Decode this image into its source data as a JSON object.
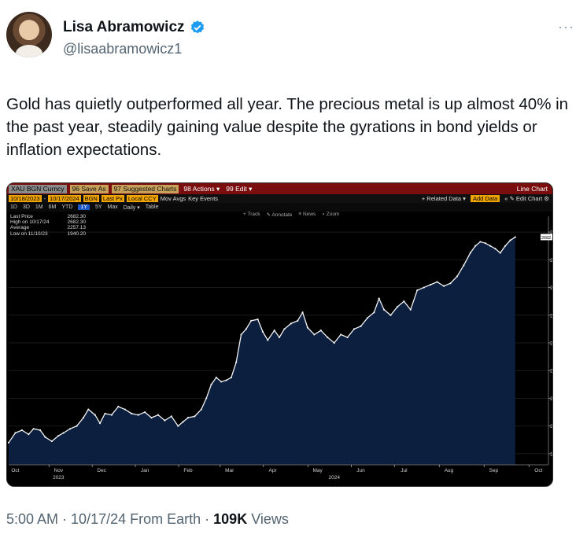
{
  "author": {
    "display_name": "Lisa Abramowicz",
    "handle": "@lisaabramowicz1",
    "verified_icon": "verified-badge-icon",
    "more_icon": "more-dots-icon",
    "more_label": "···"
  },
  "tweet": {
    "text": "Gold has quietly outperformed all year. The precious metal is up almost 40% in the past year, steadily gaining value despite the gyrations in bond yields or inflation expectations."
  },
  "terminal": {
    "ticker": "XAU BGN Curncy",
    "menu_save": "96 Save As",
    "menu_charts": "97 Suggested Charts",
    "menu_actions": "98 Actions ▾",
    "menu_edit": "99 Edit ▾",
    "chart_type": "Line Chart",
    "start_date": "10/18/2023",
    "end_date": "10/17/2024",
    "source": "BGN",
    "price_field": "Last Px",
    "currency": "Local CCY",
    "mov_avgs": "Mov Avgs",
    "key_events": "Key Events",
    "related_data": "+ Related Data ▾",
    "add_data": "Add Data",
    "edit_chart": "« ✎ Edit Chart ⚙",
    "periods": [
      "1D",
      "3D",
      "1M",
      "6M",
      "YTD",
      "1Y",
      "5Y",
      "Max"
    ],
    "selected_period": "1Y",
    "frequency": "Daily ▾",
    "table_label": "Table",
    "tools": [
      "+ Track",
      "✎ Annotate",
      "≡ News",
      "⌕ Zoom"
    ],
    "legend": [
      {
        "label": "Last Price",
        "value": "2682.30"
      },
      {
        "label": "High on 10/17/24",
        "value": "2682.30"
      },
      {
        "label": "Average",
        "value": "2257.13"
      },
      {
        "label": "Low on 11/10/23",
        "value": "1940.20"
      }
    ],
    "last_price_tag": "2682.30"
  },
  "chart_data": {
    "type": "area",
    "xlabel": "",
    "ylabel": "",
    "ylim": [
      1860,
      2740
    ],
    "y_ticks": [
      1900,
      2000,
      2100,
      2200,
      2300,
      2400,
      2500,
      2600,
      2700
    ],
    "month_labels": [
      {
        "label": "Oct",
        "day": 4
      },
      {
        "label": "Nov",
        "day": 30
      },
      {
        "label": "Dec",
        "day": 56
      },
      {
        "label": "Jan",
        "day": 82
      },
      {
        "label": "Feb",
        "day": 108
      },
      {
        "label": "Mar",
        "day": 133
      },
      {
        "label": "Apr",
        "day": 159
      },
      {
        "label": "May",
        "day": 186
      },
      {
        "label": "Jun",
        "day": 212
      },
      {
        "label": "Jul",
        "day": 238
      },
      {
        "label": "Aug",
        "day": 265
      },
      {
        "label": "Sep",
        "day": 292
      },
      {
        "label": "Oct",
        "day": 319
      }
    ],
    "year_labels": [
      {
        "label": "2023",
        "day": 30
      },
      {
        "label": "2024",
        "day": 196
      }
    ],
    "total_days": 325,
    "series": [
      {
        "points": [
          [
            0,
            1940
          ],
          [
            4,
            1975
          ],
          [
            8,
            1985
          ],
          [
            12,
            1970
          ],
          [
            15,
            1990
          ],
          [
            19,
            1985
          ],
          [
            22,
            1960
          ],
          [
            26,
            1945
          ],
          [
            30,
            1965
          ],
          [
            33,
            1975
          ],
          [
            37,
            1990
          ],
          [
            41,
            2000
          ],
          [
            45,
            2030
          ],
          [
            48,
            2060
          ],
          [
            52,
            2040
          ],
          [
            55,
            2010
          ],
          [
            58,
            2045
          ],
          [
            62,
            2040
          ],
          [
            66,
            2070
          ],
          [
            70,
            2060
          ],
          [
            74,
            2045
          ],
          [
            78,
            2040
          ],
          [
            82,
            2050
          ],
          [
            86,
            2030
          ],
          [
            90,
            2040
          ],
          [
            94,
            2020
          ],
          [
            98,
            2035
          ],
          [
            102,
            2000
          ],
          [
            105,
            2015
          ],
          [
            108,
            2030
          ],
          [
            112,
            2035
          ],
          [
            116,
            2060
          ],
          [
            119,
            2100
          ],
          [
            122,
            2150
          ],
          [
            125,
            2175
          ],
          [
            128,
            2160
          ],
          [
            131,
            2165
          ],
          [
            134,
            2175
          ],
          [
            137,
            2230
          ],
          [
            140,
            2330
          ],
          [
            143,
            2350
          ],
          [
            146,
            2380
          ],
          [
            150,
            2385
          ],
          [
            153,
            2340
          ],
          [
            156,
            2310
          ],
          [
            160,
            2345
          ],
          [
            163,
            2320
          ],
          [
            166,
            2350
          ],
          [
            170,
            2370
          ],
          [
            174,
            2380
          ],
          [
            177,
            2410
          ],
          [
            180,
            2355
          ],
          [
            184,
            2330
          ],
          [
            188,
            2345
          ],
          [
            192,
            2320
          ],
          [
            196,
            2300
          ],
          [
            200,
            2330
          ],
          [
            204,
            2320
          ],
          [
            208,
            2350
          ],
          [
            212,
            2360
          ],
          [
            216,
            2390
          ],
          [
            220,
            2410
          ],
          [
            223,
            2460
          ],
          [
            226,
            2420
          ],
          [
            230,
            2400
          ],
          [
            234,
            2430
          ],
          [
            238,
            2450
          ],
          [
            242,
            2420
          ],
          [
            246,
            2490
          ],
          [
            250,
            2500
          ],
          [
            254,
            2510
          ],
          [
            258,
            2520
          ],
          [
            262,
            2505
          ],
          [
            266,
            2515
          ],
          [
            270,
            2540
          ],
          [
            274,
            2580
          ],
          [
            278,
            2625
          ],
          [
            281,
            2650
          ],
          [
            284,
            2665
          ],
          [
            287,
            2660
          ],
          [
            290,
            2650
          ],
          [
            293,
            2640
          ],
          [
            296,
            2625
          ],
          [
            299,
            2650
          ],
          [
            302,
            2670
          ],
          [
            305,
            2682
          ]
        ]
      }
    ]
  },
  "meta": {
    "time": "5:00 AM",
    "sep1": " · ",
    "date": "10/17/24",
    "from": " From Earth",
    "sep2": " · ",
    "views_count": "109K",
    "views_label": " Views"
  }
}
